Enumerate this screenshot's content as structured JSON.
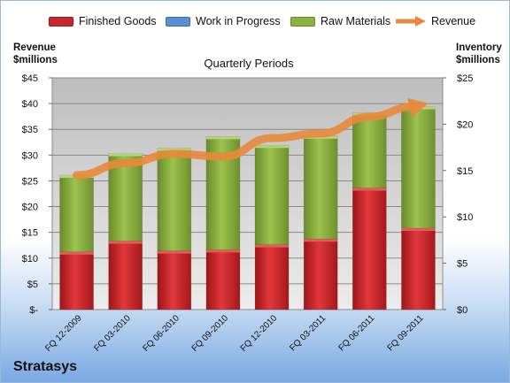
{
  "company": "Stratasys",
  "left_axis_title": [
    "Revenue",
    "$millions"
  ],
  "right_axis_title": [
    "Inventory",
    "$millions"
  ],
  "chart_title": "Quarterly Periods",
  "legend": [
    {
      "label": "Finished Goods",
      "color": "#c8262b"
    },
    {
      "label": "Work in Progress",
      "color": "#5b8fd4"
    },
    {
      "label": "Raw Materials",
      "color": "#8db23e"
    },
    {
      "label": "Revenue",
      "color": "#e8883a"
    }
  ],
  "chart_data": {
    "type": "bar",
    "stacked": true,
    "categories": [
      "FQ 12-2009",
      "FQ 03-2010",
      "FQ 06-2010",
      "FQ 09-2010",
      "FQ 12-2010",
      "FQ 03-2011",
      "FQ 06-2011",
      "FQ 09-2011"
    ],
    "series": [
      {
        "name": "Finished Goods",
        "axis": "left",
        "values": [
          11.2,
          13.3,
          11.4,
          11.6,
          12.6,
          13.7,
          23.6,
          15.8
        ]
      },
      {
        "name": "Work in Progress",
        "axis": "left",
        "values": [
          0,
          0,
          0,
          0,
          0,
          0,
          0,
          0
        ]
      },
      {
        "name": "Raw Materials",
        "axis": "left",
        "values": [
          14.9,
          17.0,
          19.9,
          22.0,
          19.3,
          20.0,
          14.6,
          23.6
        ]
      },
      {
        "name": "Revenue",
        "type": "line",
        "axis": "right",
        "values": [
          14.5,
          15.8,
          16.8,
          16.5,
          18.5,
          19.0,
          20.8,
          22.0
        ]
      }
    ],
    "left_axis": {
      "min": 0,
      "max": 45,
      "step": 5,
      "tick_labels": [
        "$-",
        "$5",
        "$10",
        "$15",
        "$20",
        "$25",
        "$30",
        "$35",
        "$40",
        "$45"
      ]
    },
    "right_axis": {
      "min": 0,
      "max": 25,
      "step": 5,
      "tick_labels": [
        "$0",
        "$5",
        "$10",
        "$15",
        "$20",
        "$25"
      ]
    },
    "grid": true,
    "legend_position": "top"
  }
}
